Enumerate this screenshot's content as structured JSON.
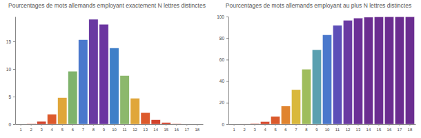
{
  "chart_data": [
    {
      "type": "bar",
      "title": "Pourcentages de mots allemands employant exactement N lettres distinctes",
      "categories": [
        "1",
        "2",
        "3",
        "4",
        "5",
        "6",
        "7",
        "8",
        "9",
        "10",
        "11",
        "12",
        "13",
        "14",
        "15",
        "16",
        "17",
        "18"
      ],
      "values": [
        0,
        0.1,
        0.5,
        1.8,
        4.8,
        9.6,
        15.3,
        19.0,
        18.1,
        13.8,
        8.8,
        4.7,
        2.1,
        0.8,
        0.3,
        0.1,
        0,
        0
      ],
      "colors": [
        "#d2432c",
        "#d2432c",
        "#d2432c",
        "#dd5a2c",
        "#e0a63a",
        "#7fb36c",
        "#4a78cc",
        "#6a3aa2",
        "#6b35a0",
        "#3f7fc8",
        "#8cb86c",
        "#e0a63a",
        "#dd5a2c",
        "#d2432c",
        "#d2432c",
        "#d2432c",
        "#d2432c",
        "#d2432c"
      ],
      "ylim": [
        0,
        19.5
      ],
      "yticks": [
        0,
        5,
        10,
        15
      ]
    },
    {
      "type": "bar",
      "title": "Pourcentages de mots allemands employant au plus N lettres distinctes",
      "categories": [
        "1",
        "2",
        "3",
        "4",
        "5",
        "6",
        "7",
        "8",
        "9",
        "10",
        "11",
        "12",
        "13",
        "14",
        "15",
        "16",
        "17",
        "18"
      ],
      "values": [
        0,
        0.1,
        0.6,
        2.4,
        7.2,
        16.8,
        32.1,
        51.1,
        69.2,
        83.0,
        91.8,
        96.5,
        98.6,
        99.4,
        99.7,
        99.8,
        99.8,
        99.8
      ],
      "colors": [
        "#d2432c",
        "#d2432c",
        "#d2432c",
        "#d6482c",
        "#db5a2c",
        "#e0842f",
        "#d9b83c",
        "#9fbd5c",
        "#5aa0b0",
        "#4a78cc",
        "#5d4fb8",
        "#6a3aa2",
        "#6b2f96",
        "#6b2d90",
        "#6b2d90",
        "#6b2d90",
        "#6b2d90",
        "#6b2d90"
      ],
      "ylim": [
        0,
        100
      ],
      "yticks": [
        0,
        20,
        40,
        60,
        80,
        100
      ]
    }
  ]
}
